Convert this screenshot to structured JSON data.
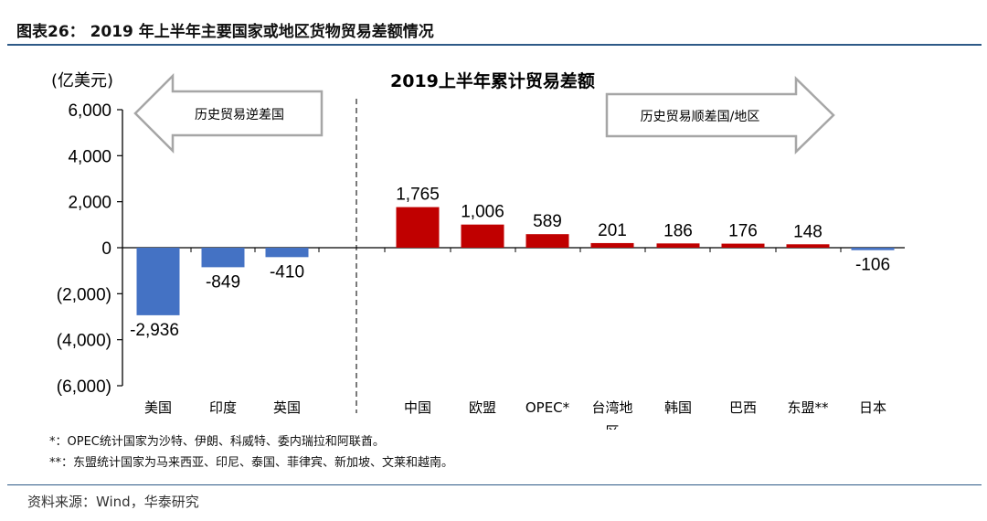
{
  "header": {
    "title": "图表26：  2019 年上半年主要国家或地区货物贸易差额情况"
  },
  "notes": {
    "note1": "*：OPEC统计国家为沙特、伊朗、科威特、委内瑞拉和阿联酋。",
    "note2": "**：东盟统计国家为马来西亚、印尼、泰国、菲律宾、新加坡、文莱和越南。"
  },
  "source": "资料来源：Wind，华泰研究",
  "arrows": {
    "left": "历史贸易逆差国",
    "right": "历史贸易顺差国/地区"
  },
  "colors": {
    "negative_bar": "#4472c4",
    "positive_bar": "#c00000",
    "rule": "#2e5a87"
  },
  "chart_data": {
    "type": "bar",
    "title": "2019上半年累计贸易差额",
    "ylabel": "(亿美元)",
    "ylim": [
      -6000,
      6000
    ],
    "yticks": [
      6000,
      4000,
      2000,
      0,
      -2000,
      -4000,
      -6000
    ],
    "ytick_labels": [
      "6,000",
      "4,000",
      "2,000",
      "0",
      "(2,000)",
      "(4,000)",
      "(6,000)"
    ],
    "categories": [
      "美国",
      "印度",
      "英国",
      "中国",
      "欧盟",
      "OPEC*",
      "台湾地区",
      "韩国",
      "巴西",
      "东盟**",
      "日本"
    ],
    "values": [
      -2936,
      -849,
      -410,
      1765,
      1006,
      589,
      201,
      186,
      176,
      148,
      -106
    ],
    "value_labels": [
      "-2,936",
      "-849",
      "-410",
      "1,765",
      "1,006",
      "589",
      "201",
      "186",
      "176",
      "148",
      "-106"
    ],
    "grid": false,
    "legend": "none"
  }
}
